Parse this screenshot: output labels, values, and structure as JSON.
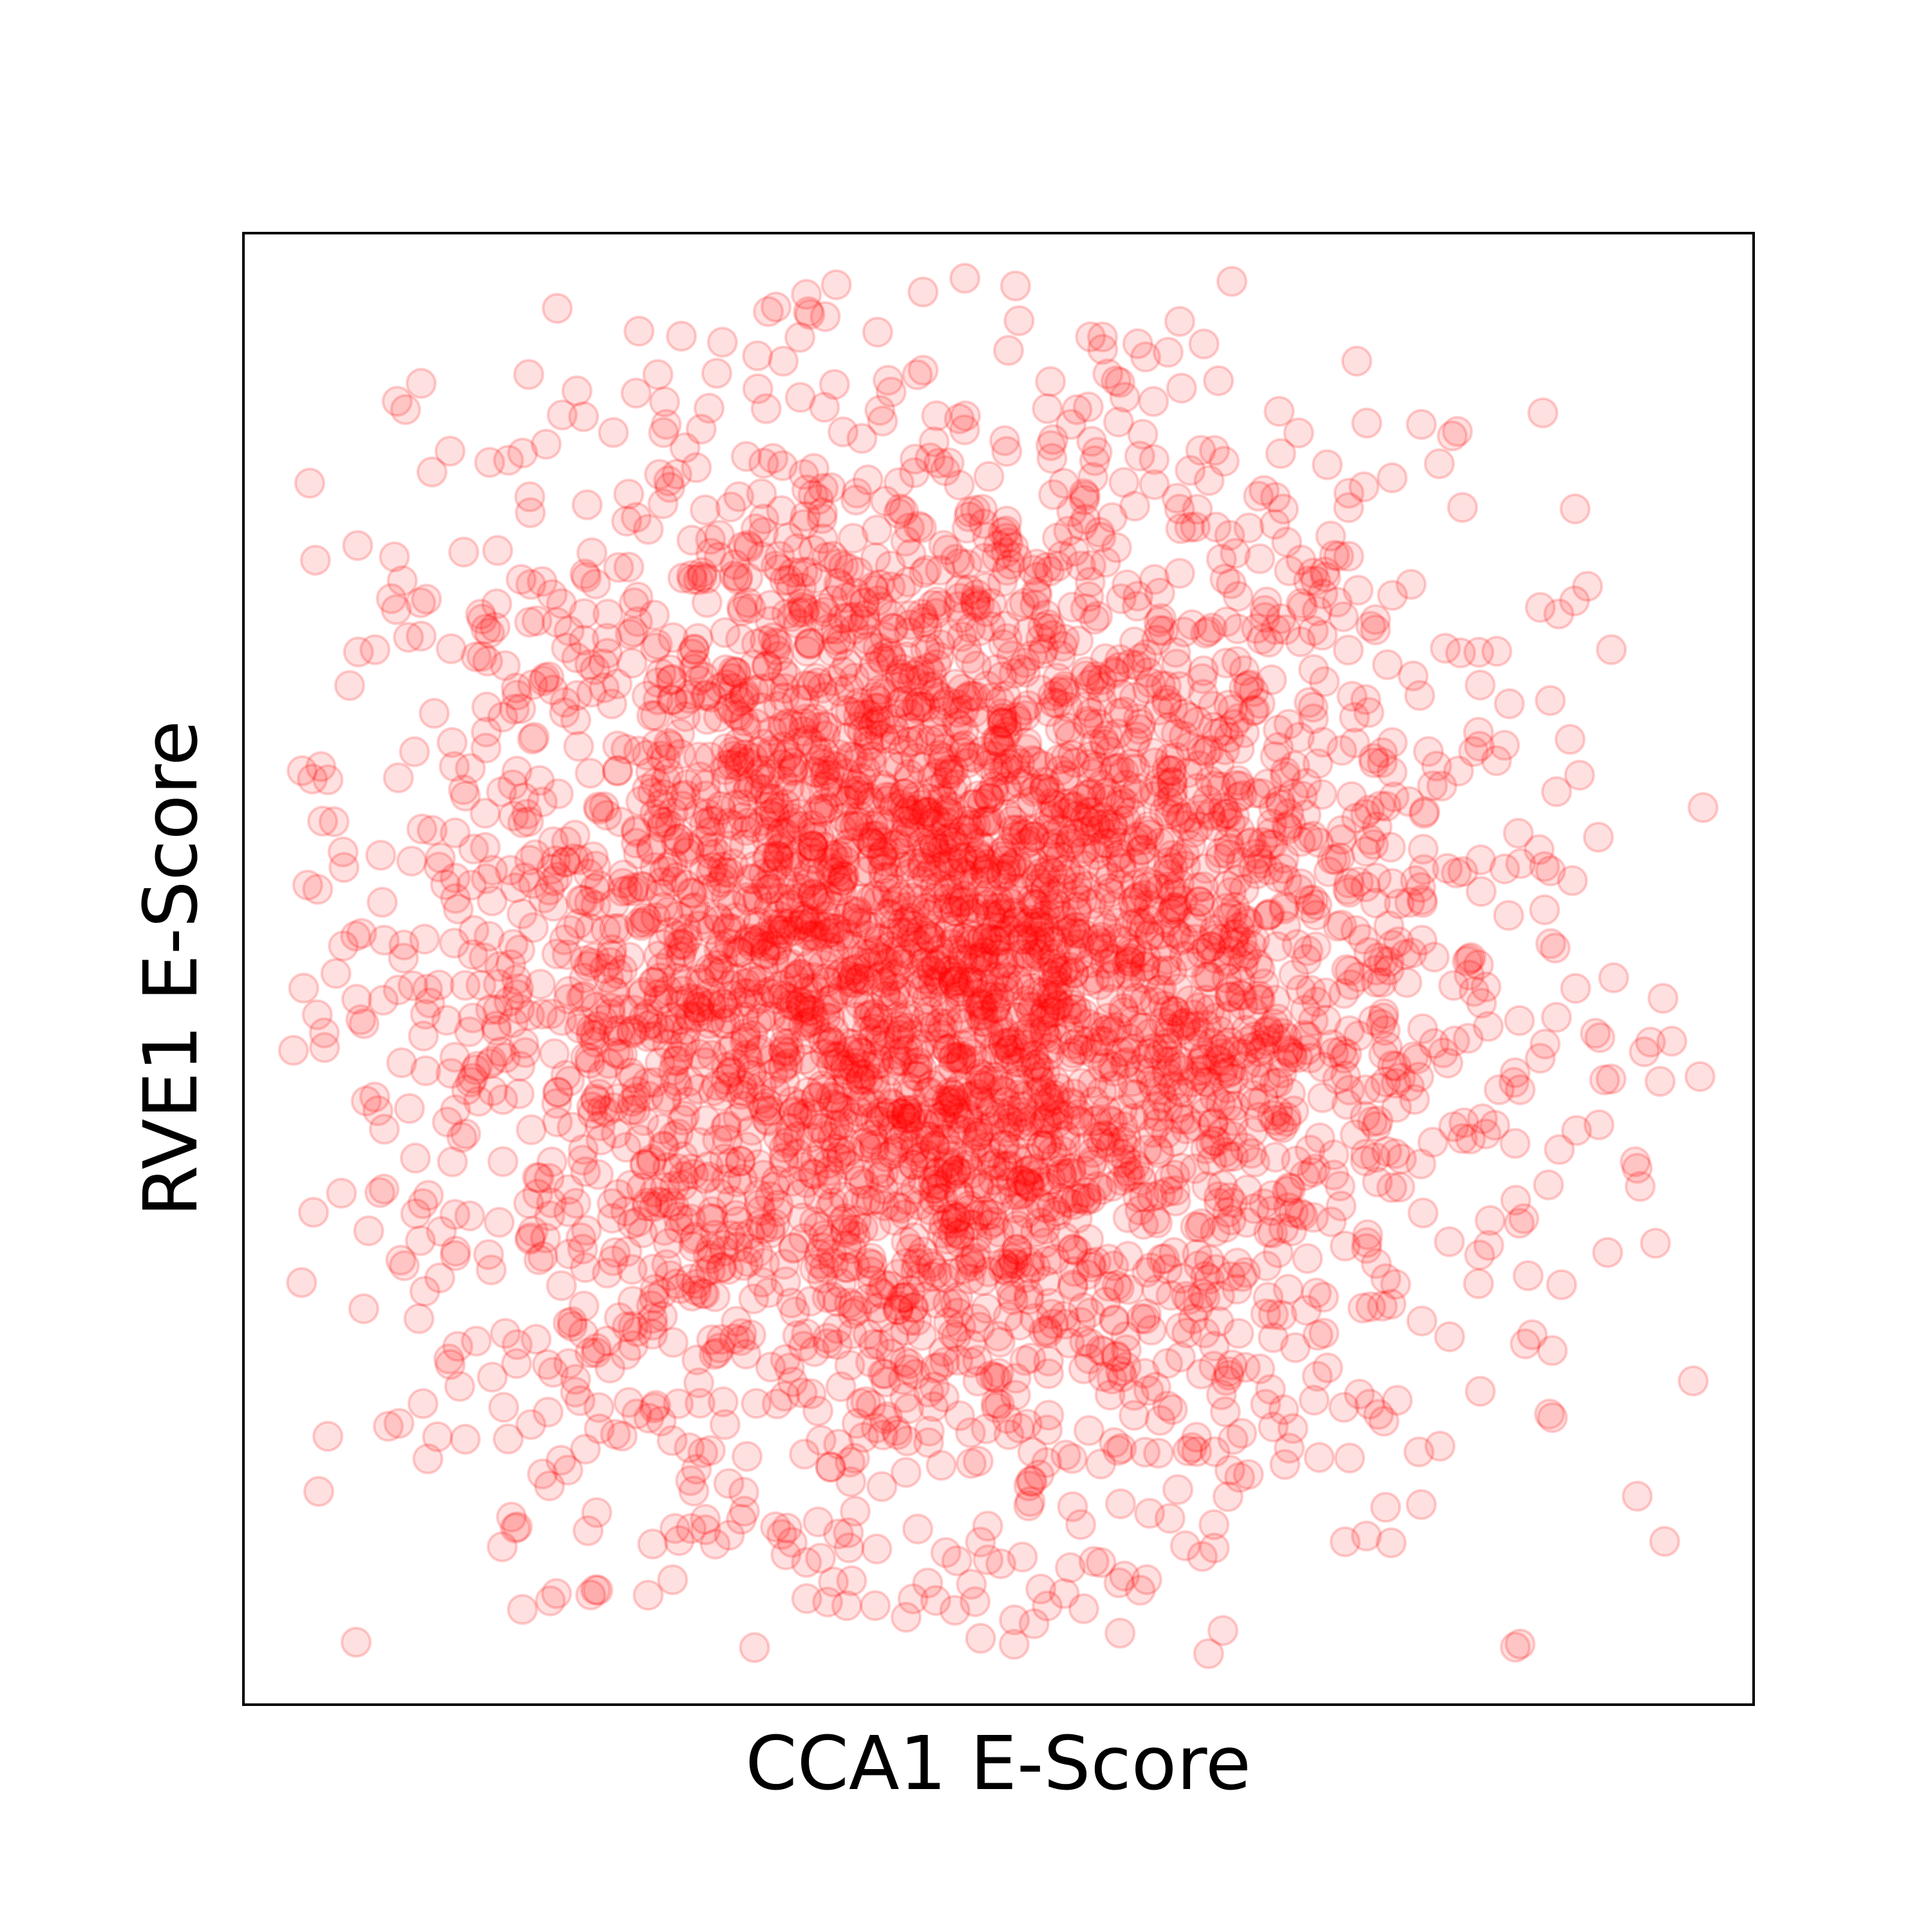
{
  "chart_data": {
    "type": "scatter",
    "title": "",
    "xlabel": "CCA1 E-Score",
    "ylabel": "RVE1 E-Score",
    "xlim": [
      -0.5,
      0.5
    ],
    "ylim": [
      -0.5,
      0.5
    ],
    "grid": false,
    "legend": "none",
    "ticks_visible": false,
    "marker": "circle",
    "color": "#ff0000",
    "alpha": 0.12,
    "series": [
      {
        "x": [
          -0.21,
          -0.05,
          0.12,
          0.28,
          0.39,
          0.44,
          -0.4,
          -0.44,
          -0.37,
          -0.32,
          -0.2,
          -0.31,
          -0.36,
          0.1,
          0.26,
          0.46,
          0.38,
          -0.22,
          -0.14
        ],
        "y": [
          0.43,
          0.46,
          0.44,
          0.37,
          0.26,
          -0.02,
          0.28,
          0.1,
          -0.21,
          -0.38,
          -0.34,
          0.31,
          -0.06,
          -0.37,
          -0.39,
          -0.28,
          0.06,
          0.37,
          -0.38
        ]
      }
    ]
  }
}
